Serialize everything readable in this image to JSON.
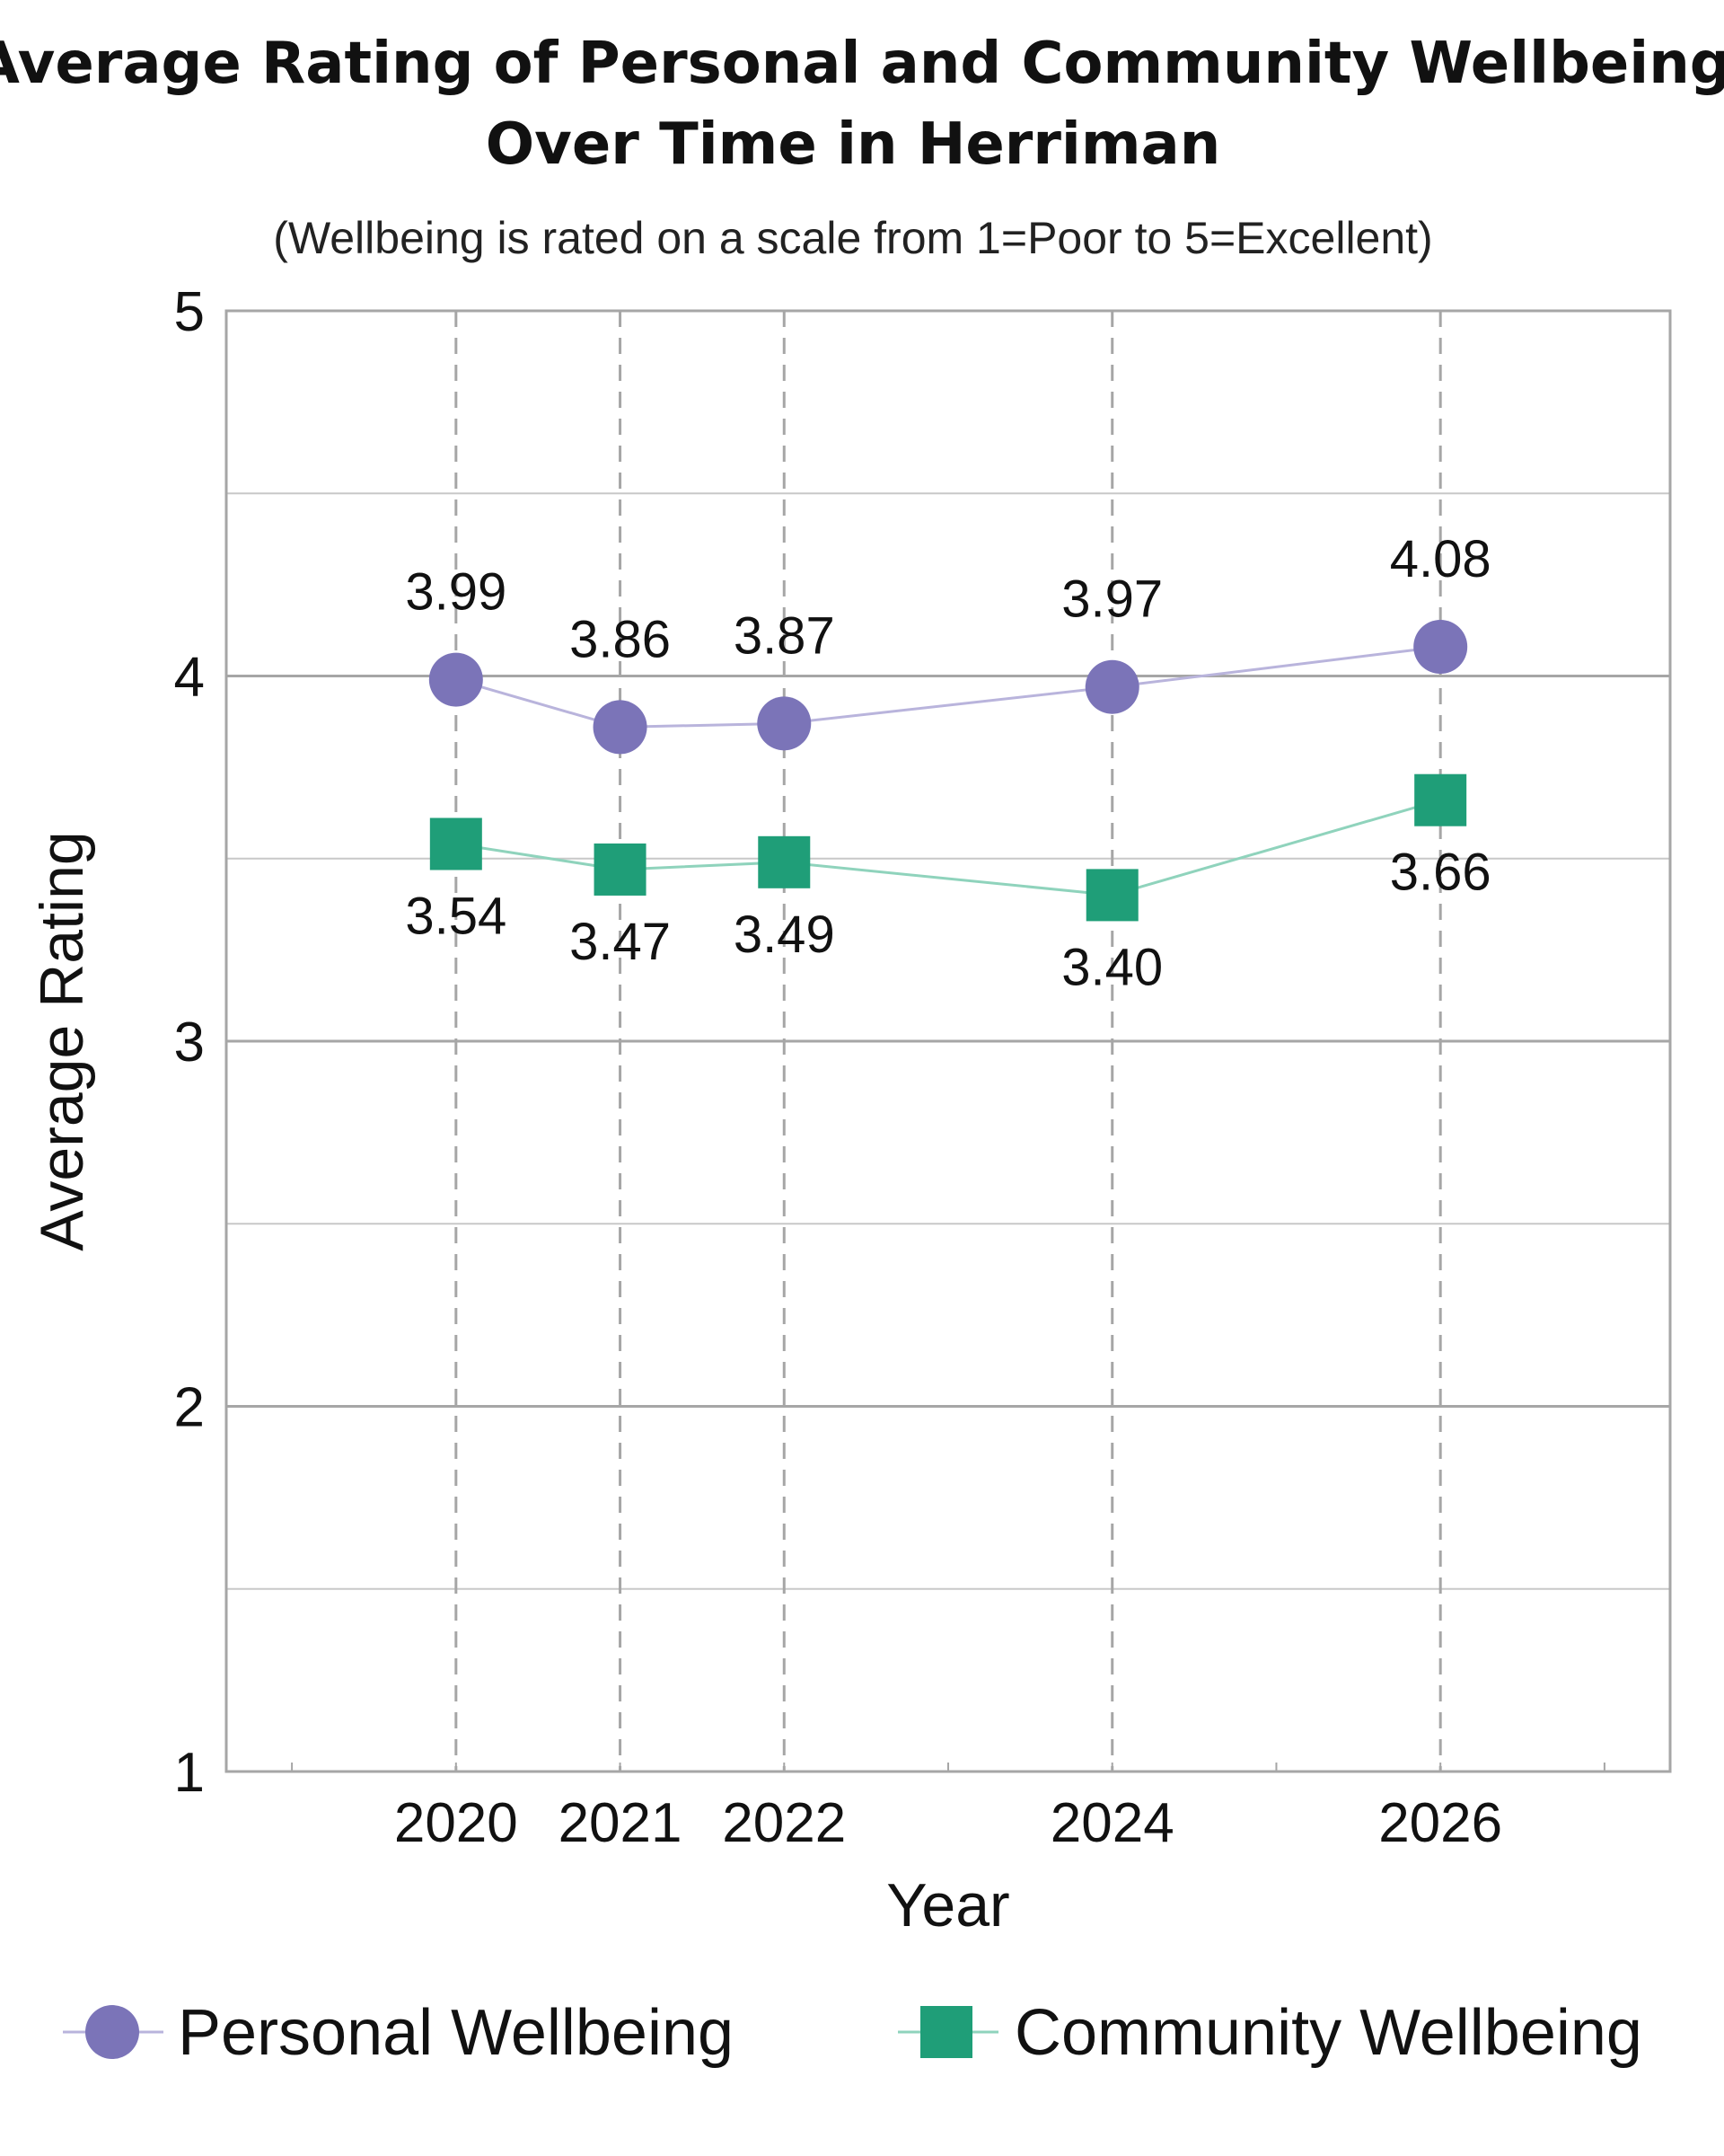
{
  "chart_data": {
    "type": "line",
    "title_line1": "Average Rating of Personal and Community Wellbeing",
    "title_line2": "Over Time in Herriman",
    "subtitle": "(Wellbeing is rated on a scale from 1=Poor to 5=Excellent)",
    "xlabel": "Year",
    "ylabel": "Average Rating",
    "x": [
      2020,
      2021,
      2022,
      2024,
      2026
    ],
    "x_tick_labels": [
      "2020",
      "2021",
      "2022",
      "2024",
      "2026"
    ],
    "xlim": [
      2018.6,
      2027.4
    ],
    "ylim": [
      1,
      5
    ],
    "y_ticks": [
      1,
      2,
      3,
      4,
      5
    ],
    "y_tick_labels": [
      "1",
      "2",
      "3",
      "4",
      "5"
    ],
    "grid": true,
    "legend_position": "bottom",
    "series": [
      {
        "name": "Personal Wellbeing",
        "marker": "circle",
        "color": "#7b74b8",
        "line_color": "#b9b4dc",
        "values": [
          3.99,
          3.86,
          3.87,
          3.97,
          4.08
        ],
        "labels": [
          "3.99",
          "3.86",
          "3.87",
          "3.97",
          "4.08"
        ],
        "label_position": "above"
      },
      {
        "name": "Community Wellbeing",
        "marker": "square",
        "color": "#1f9e78",
        "line_color": "#8fd3bc",
        "values": [
          3.54,
          3.47,
          3.49,
          3.4,
          3.66
        ],
        "labels": [
          "3.54",
          "3.47",
          "3.49",
          "3.40",
          "3.66"
        ],
        "label_position": "below"
      }
    ]
  }
}
